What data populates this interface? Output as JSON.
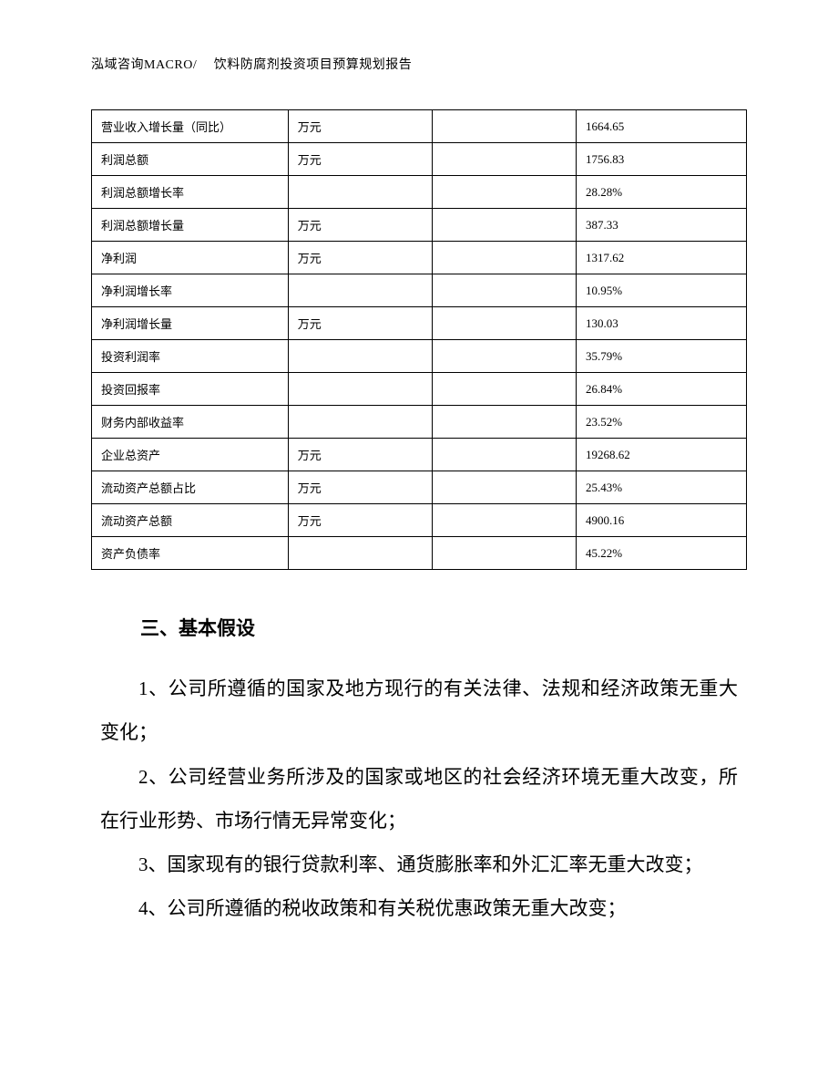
{
  "header": "泓域咨询MACRO/　 饮料防腐剂投资项目预算规划报告",
  "table": {
    "rows": [
      {
        "label": "营业收入增长量（同比）",
        "unit": "万元",
        "blank": "",
        "value": "1664.65"
      },
      {
        "label": "利润总额",
        "unit": "万元",
        "blank": "",
        "value": "1756.83"
      },
      {
        "label": "利润总额增长率",
        "unit": "",
        "blank": "",
        "value": "28.28%"
      },
      {
        "label": "利润总额增长量",
        "unit": "万元",
        "blank": "",
        "value": "387.33"
      },
      {
        "label": "净利润",
        "unit": "万元",
        "blank": "",
        "value": "1317.62"
      },
      {
        "label": "净利润增长率",
        "unit": "",
        "blank": "",
        "value": "10.95%"
      },
      {
        "label": "净利润增长量",
        "unit": "万元",
        "blank": "",
        "value": "130.03"
      },
      {
        "label": "投资利润率",
        "unit": "",
        "blank": "",
        "value": "35.79%"
      },
      {
        "label": "投资回报率",
        "unit": "",
        "blank": "",
        "value": "26.84%"
      },
      {
        "label": "财务内部收益率",
        "unit": "",
        "blank": "",
        "value": "23.52%"
      },
      {
        "label": "企业总资产",
        "unit": "万元",
        "blank": "",
        "value": "19268.62"
      },
      {
        "label": "流动资产总额占比",
        "unit": "万元",
        "blank": "",
        "value": "25.43%"
      },
      {
        "label": "流动资产总额",
        "unit": "万元",
        "blank": "",
        "value": "4900.16"
      },
      {
        "label": "资产负债率",
        "unit": "",
        "blank": "",
        "value": "45.22%"
      }
    ]
  },
  "section": {
    "title": "三、基本假设",
    "paragraphs": [
      "1、公司所遵循的国家及地方现行的有关法律、法规和经济政策无重大变化；",
      "2、公司经营业务所涉及的国家或地区的社会经济环境无重大改变，所在行业形势、市场行情无异常变化；",
      "3、国家现有的银行贷款利率、通货膨胀率和外汇汇率无重大改变；",
      "4、公司所遵循的税收政策和有关税优惠政策无重大改变；"
    ]
  }
}
